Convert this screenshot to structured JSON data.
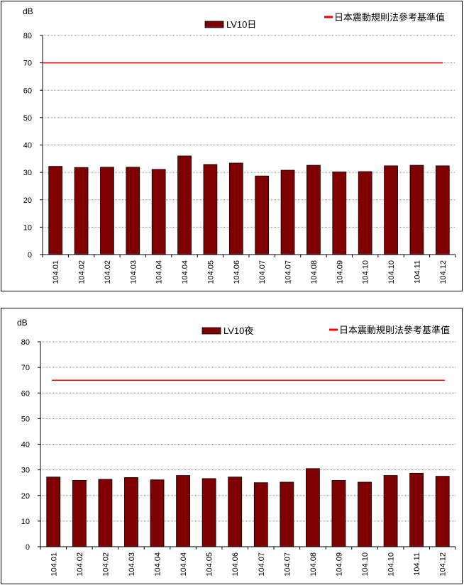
{
  "chart_data": [
    {
      "type": "bar",
      "ylabel": "dB",
      "ylim": [
        0,
        80
      ],
      "yticks": [
        0,
        10,
        20,
        30,
        40,
        50,
        60,
        70,
        80
      ],
      "grid": "horizontal",
      "legend_position": "top",
      "categories": [
        "104.01",
        "104.02",
        "104.02",
        "104.03",
        "104.04",
        "104.04",
        "104.05",
        "104.06",
        "104.07",
        "104.07",
        "104.08",
        "104.09",
        "104.10",
        "104.10",
        "104.11",
        "104.12"
      ],
      "series": [
        {
          "name": "LV10日",
          "color": "#7f0000",
          "values": [
            32.2,
            31.8,
            31.9,
            31.9,
            31.1,
            36.0,
            32.9,
            33.4,
            28.7,
            30.8,
            32.6,
            30.2,
            30.3,
            32.4,
            32.6,
            32.4
          ]
        }
      ],
      "reference": {
        "name": "日本震動規則法參考基準值",
        "value": 70,
        "color": "#ff0000"
      }
    },
    {
      "type": "bar",
      "ylabel": "dB",
      "ylim": [
        0,
        80
      ],
      "yticks": [
        0,
        10,
        20,
        30,
        40,
        50,
        60,
        70,
        80
      ],
      "grid": "horizontal",
      "legend_position": "top",
      "categories": [
        "104.01",
        "104.02",
        "104.02",
        "104.03",
        "104.04",
        "104.04",
        "104.05",
        "104.06",
        "104.07",
        "104.07",
        "104.08",
        "104.09",
        "104.10",
        "104.10",
        "104.11",
        "104.12"
      ],
      "series": [
        {
          "name": "LV10夜",
          "color": "#7f0000",
          "values": [
            27.2,
            25.9,
            26.3,
            27.0,
            26.1,
            27.8,
            26.6,
            27.2,
            25.0,
            25.2,
            30.5,
            25.9,
            25.2,
            27.8,
            28.7,
            27.5
          ]
        }
      ],
      "reference": {
        "name": "日本震動規則法參考基準值",
        "value": 65,
        "color": "#ff0000"
      }
    }
  ]
}
